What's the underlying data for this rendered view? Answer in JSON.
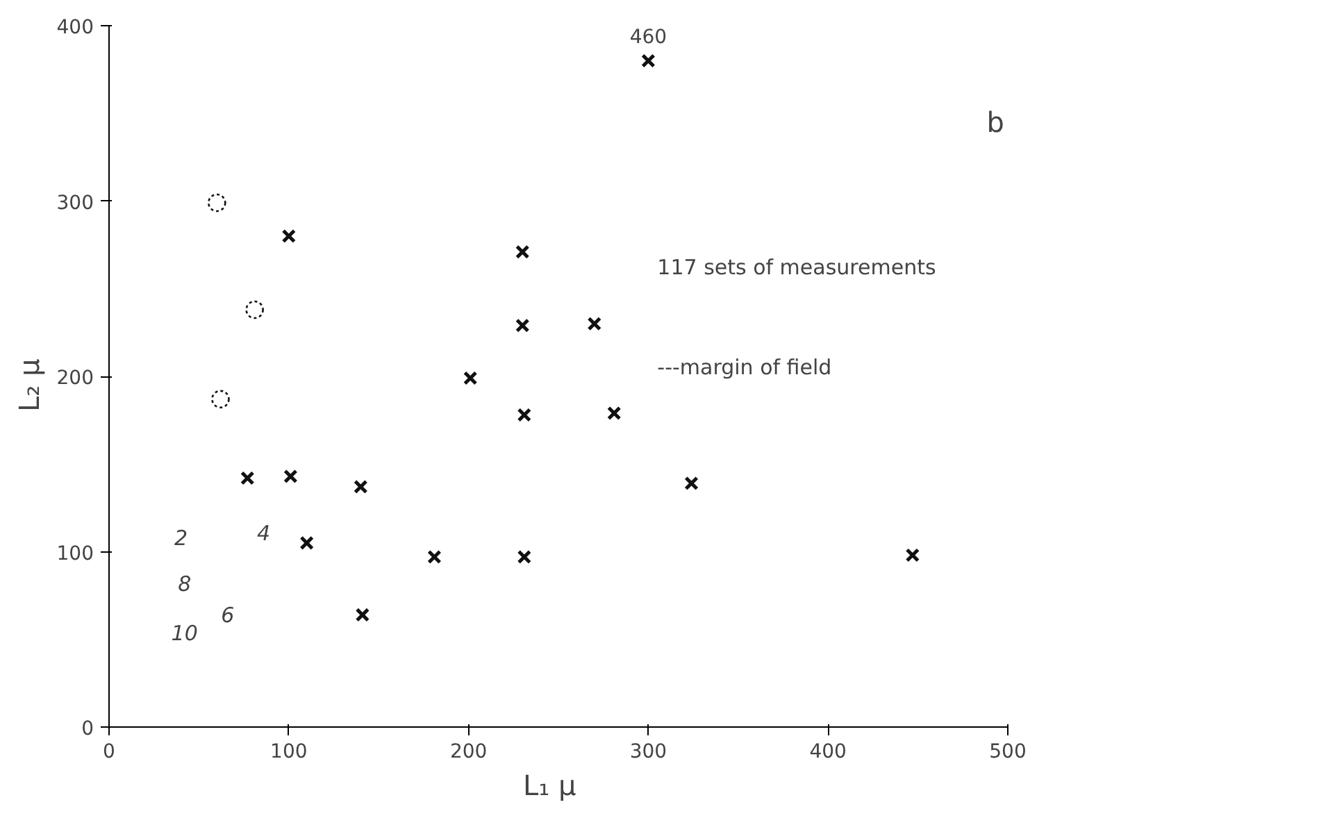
{
  "chart_data": {
    "type": "scatter",
    "xlabel": "L₁   μ",
    "ylabel": "L₂   μ",
    "xlim": [
      0,
      500
    ],
    "ylim": [
      0,
      400
    ],
    "xticks": [
      0,
      100,
      200,
      300,
      400,
      500
    ],
    "yticks": [
      0,
      100,
      200,
      300,
      400
    ],
    "grid": false,
    "series": [
      {
        "color": "#111111",
        "marker": "cross",
        "x": [
          100,
          230,
          230,
          270,
          201,
          231,
          281,
          140,
          181,
          231,
          324,
          447,
          141,
          77,
          101,
          110,
          300
        ],
        "values": [
          280,
          271,
          229,
          230,
          199,
          178,
          179,
          137,
          97,
          97,
          139,
          98,
          64,
          142,
          143,
          105,
          380
        ]
      },
      {
        "color": "#111111",
        "marker": "circle",
        "x": [
          60,
          81,
          62
        ],
        "values": [
          299,
          238,
          187
        ]
      }
    ],
    "annotations": [
      "460",
      "2",
      "4",
      "8",
      "6",
      "10",
      "117 sets of measurements",
      "---margin of field",
      "b"
    ]
  }
}
